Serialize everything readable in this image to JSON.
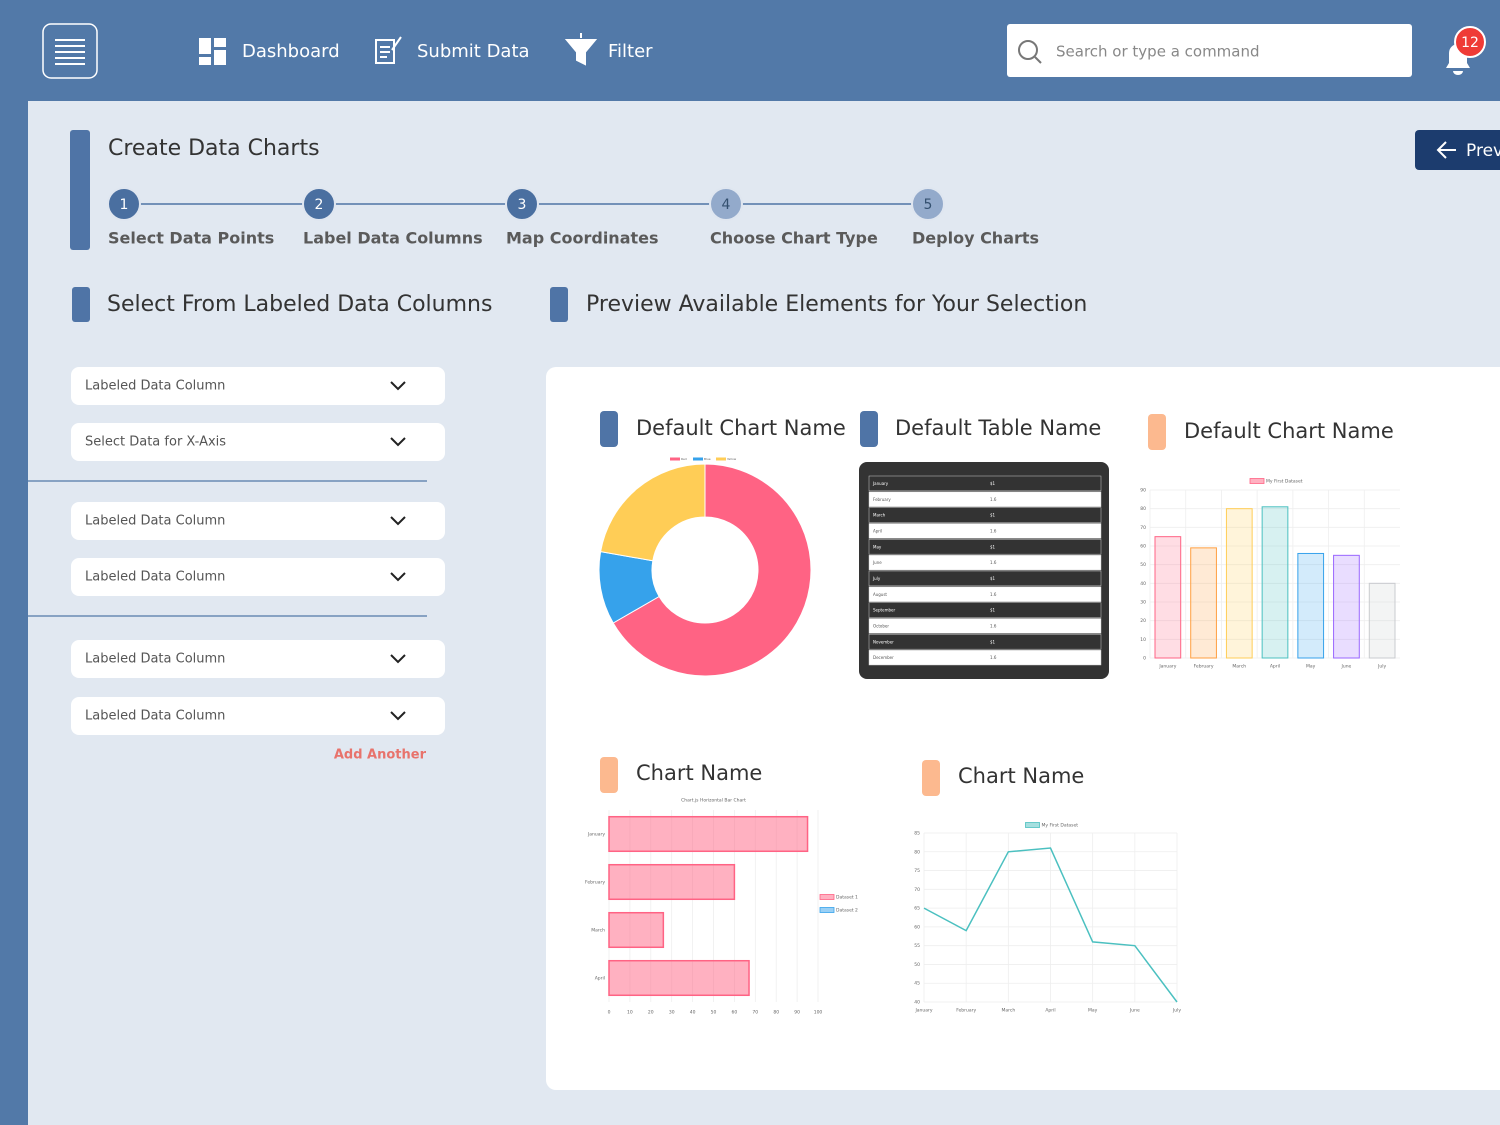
{
  "nav": {
    "items": [
      "Dashboard",
      "Submit Data",
      "Filter"
    ],
    "search_placeholder": "Search or type a command",
    "notifications": "12"
  },
  "header": {
    "title": "Create Data Charts",
    "back_button": "Previous",
    "steps": [
      {
        "number": 1,
        "label": "Select Data Points",
        "done": true
      },
      {
        "number": 2,
        "label": "Label Data Columns",
        "done": true
      },
      {
        "number": 3,
        "label": "Map Coordinates",
        "done": true
      },
      {
        "number": 4,
        "label": "Choose Chart Type",
        "done": false
      },
      {
        "number": 5,
        "label": "Deploy Charts",
        "done": false
      }
    ]
  },
  "left": {
    "title": "Select From Labeled Data Columns",
    "groups": [
      [
        "Labeled Data Column",
        "Select Data for X-Axis"
      ],
      [
        "Labeled Data Column",
        "Labeled Data Column"
      ],
      [
        "Labeled Data Column",
        "Labeled Data Column"
      ]
    ],
    "add_button": "Add Another"
  },
  "preview": {
    "title": "Preview Available Elements for Your Selection",
    "cards": [
      {
        "title": "Default Chart Name",
        "accent": "#4f74a6",
        "chart": {
          "type": "doughnut",
          "categories": [
            "Red",
            "Blue",
            "Yellow"
          ],
          "values": [
            300,
            50,
            100
          ],
          "colors": [
            "#ff6384",
            "#36a2eb",
            "#ffcd56"
          ]
        }
      },
      {
        "title": "Default Table Name",
        "accent": "#4f74a6",
        "table": {
          "rows": [
            [
              "January",
              "$1"
            ],
            [
              "February",
              "1.6"
            ],
            [
              "March",
              "$1"
            ],
            [
              "April",
              "1.6"
            ],
            [
              "May",
              "$1"
            ],
            [
              "June",
              "1.6"
            ],
            [
              "July",
              "$1"
            ],
            [
              "August",
              "1.6"
            ],
            [
              "September",
              "$1"
            ],
            [
              "October",
              "1.6"
            ],
            [
              "November",
              "$1"
            ],
            [
              "December",
              "1.6"
            ]
          ]
        }
      },
      {
        "title": "Default Chart Name",
        "accent": "#fcb98f",
        "chart": {
          "type": "bar",
          "legend": "My First Dataset",
          "categories": [
            "January",
            "February",
            "March",
            "April",
            "May",
            "June",
            "July"
          ],
          "values": [
            65,
            59,
            80,
            81,
            56,
            55,
            40
          ],
          "colors": [
            "#ff6384",
            "#ff9f40",
            "#ffcd56",
            "#4bc0c0",
            "#36a2eb",
            "#9966ff",
            "#c9cbcf"
          ],
          "ylim": [
            0,
            90
          ],
          "yticks": [
            0,
            10,
            20,
            30,
            40,
            50,
            60,
            70,
            80,
            90
          ],
          "grid": true
        }
      },
      {
        "title": "Chart Name",
        "accent": "#fcb98f",
        "chart": {
          "type": "hbar",
          "title": "Chart.js Horizontal Bar Chart",
          "categories": [
            "January",
            "February",
            "March",
            "April"
          ],
          "series": [
            {
              "name": "Dataset 1",
              "color": "#ff6384",
              "values": [
                95,
                60,
                26,
                67
              ]
            },
            {
              "name": "Dataset 2",
              "color": "#36a2eb",
              "values": [
                null,
                null,
                null,
                null
              ]
            }
          ],
          "xlim": [
            0,
            100
          ],
          "xticks": [
            0,
            10,
            20,
            30,
            40,
            50,
            60,
            70,
            80,
            90,
            100
          ],
          "grid": true
        }
      },
      {
        "title": "Chart Name",
        "accent": "#fcb98f",
        "chart": {
          "type": "line",
          "legend": "My First Dataset",
          "color": "#4bc0c0",
          "categories": [
            "January",
            "February",
            "March",
            "April",
            "May",
            "June",
            "July"
          ],
          "values": [
            65,
            59,
            80,
            81,
            56,
            55,
            40
          ],
          "ylim": [
            40,
            85
          ],
          "yticks": [
            40,
            45,
            50,
            55,
            60,
            65,
            70,
            75,
            80,
            85
          ],
          "grid": true
        }
      }
    ]
  }
}
